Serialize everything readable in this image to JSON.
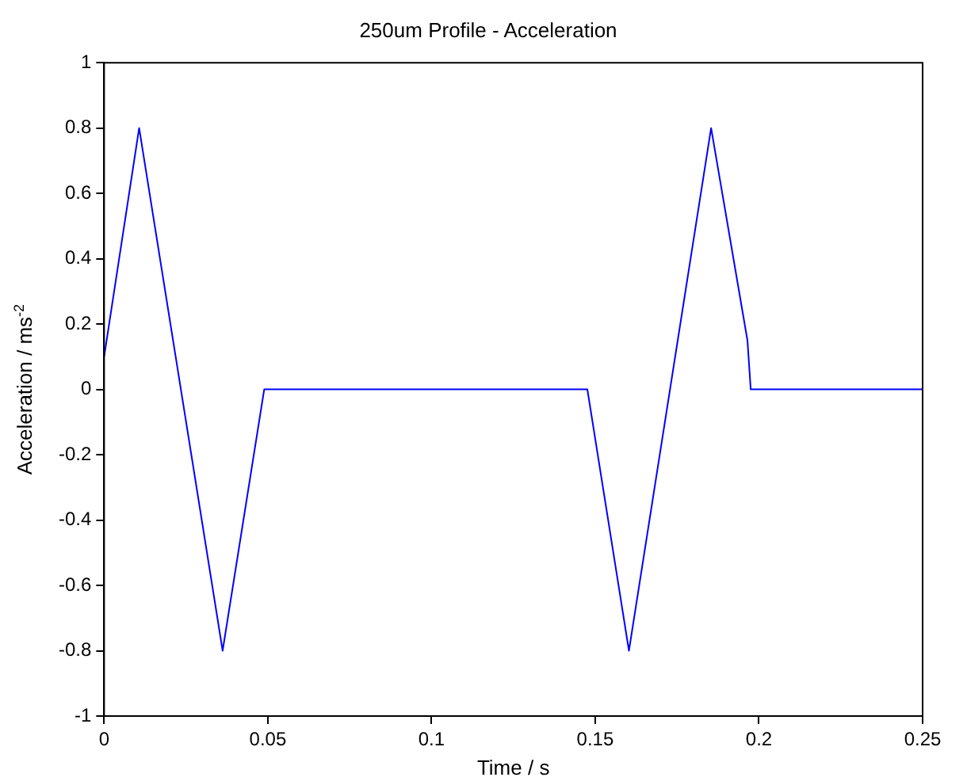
{
  "chart_data": {
    "type": "line",
    "title": "250um Profile - Acceleration",
    "xlabel": "Time / s",
    "ylabel": "Acceleration / ms$^{-2}$",
    "x": [
      0,
      0.0107,
      0.0362,
      0.0489,
      0.1476,
      0.1603,
      0.1854,
      0.1965,
      0.1975,
      0.25
    ],
    "series": [
      {
        "color": "#0000ff",
        "values": [
          0.1,
          0.8,
          -0.8,
          0,
          0,
          -0.8,
          0.8,
          0.15,
          0,
          0
        ]
      }
    ],
    "xlim": [
      0,
      0.25
    ],
    "xticks": [
      0,
      0.05,
      0.1,
      0.15,
      0.2,
      0.25
    ],
    "ylim": [
      -1,
      1
    ],
    "yticks": [
      -1,
      -0.8,
      -0.6,
      -0.4,
      -0.2,
      0,
      0.2,
      0.4,
      0.6,
      0.8,
      1
    ],
    "grid": false,
    "legend": false,
    "marker": "none",
    "line_style": "solid"
  }
}
